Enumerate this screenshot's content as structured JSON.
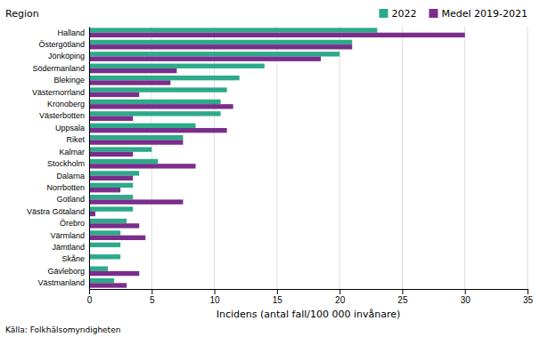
{
  "chart_data": {
    "type": "bar",
    "orientation": "horizontal",
    "ylabel": "Region",
    "xlabel": "Incidens (antal fall/100 000 invånare)",
    "annotations": [
      "Källa: Folkhälsomyndigheten"
    ],
    "categories": [
      "Halland",
      "Östergötland",
      "Jönköping",
      "Södermanland",
      "Blekinge",
      "Västernorrland",
      "Kronoberg",
      "Västerbotten",
      "Uppsala",
      "Riket",
      "Kalmar",
      "Stockholm",
      "Dalarna",
      "Norrbotten",
      "Gotland",
      "Västra Götaland",
      "Örebro",
      "Värmland",
      "Jämtland",
      "Skåne",
      "Gävleborg",
      "Västmanland"
    ],
    "series": [
      {
        "name": "2022",
        "color": "#2daa8a",
        "values": [
          23.0,
          21.0,
          20.0,
          14.0,
          12.0,
          11.0,
          10.5,
          10.5,
          8.5,
          7.5,
          5.0,
          5.5,
          4.0,
          3.5,
          3.5,
          3.5,
          3.0,
          2.5,
          2.5,
          2.5,
          1.5,
          2.0
        ]
      },
      {
        "name": "Medel 2019-2021",
        "color": "#7b2d8b",
        "values": [
          30.0,
          21.0,
          18.5,
          7.0,
          6.5,
          4.0,
          11.5,
          3.5,
          11.0,
          7.5,
          3.5,
          8.5,
          3.5,
          2.5,
          7.5,
          0.5,
          4.0,
          4.5,
          0.0,
          0.0,
          4.0,
          3.0
        ]
      }
    ],
    "xlim": [
      0,
      35
    ],
    "xticks": [
      0,
      5,
      10,
      15,
      20,
      25,
      30,
      35
    ],
    "grid": true,
    "legend": "upper right"
  }
}
